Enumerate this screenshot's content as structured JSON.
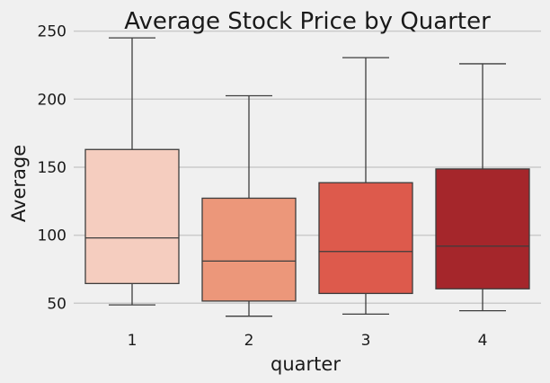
{
  "chart_data": {
    "type": "box",
    "title": "Average Stock Price by Quarter",
    "xlabel": "quarter",
    "ylabel": "Average",
    "ylim": [
      35,
      257
    ],
    "yticks": [
      50,
      100,
      150,
      200,
      250
    ],
    "grid": "horizontal",
    "categories": [
      "1",
      "2",
      "3",
      "4"
    ],
    "colors": [
      "#f5cdbf",
      "#ec977a",
      "#dd5a4c",
      "#a5262b"
    ],
    "boxes": [
      {
        "label": "1",
        "min": 48.8,
        "q1": 64.5,
        "median": 98,
        "q3": 163,
        "max": 245
      },
      {
        "label": "2",
        "min": 40.5,
        "q1": 51.6,
        "median": 81,
        "q3": 127.2,
        "max": 202.5
      },
      {
        "label": "3",
        "min": 42,
        "q1": 57.2,
        "median": 88,
        "q3": 138.6,
        "max": 230.5
      },
      {
        "label": "4",
        "min": 44.5,
        "q1": 60.6,
        "median": 92,
        "q3": 148.7,
        "max": 226
      }
    ]
  }
}
